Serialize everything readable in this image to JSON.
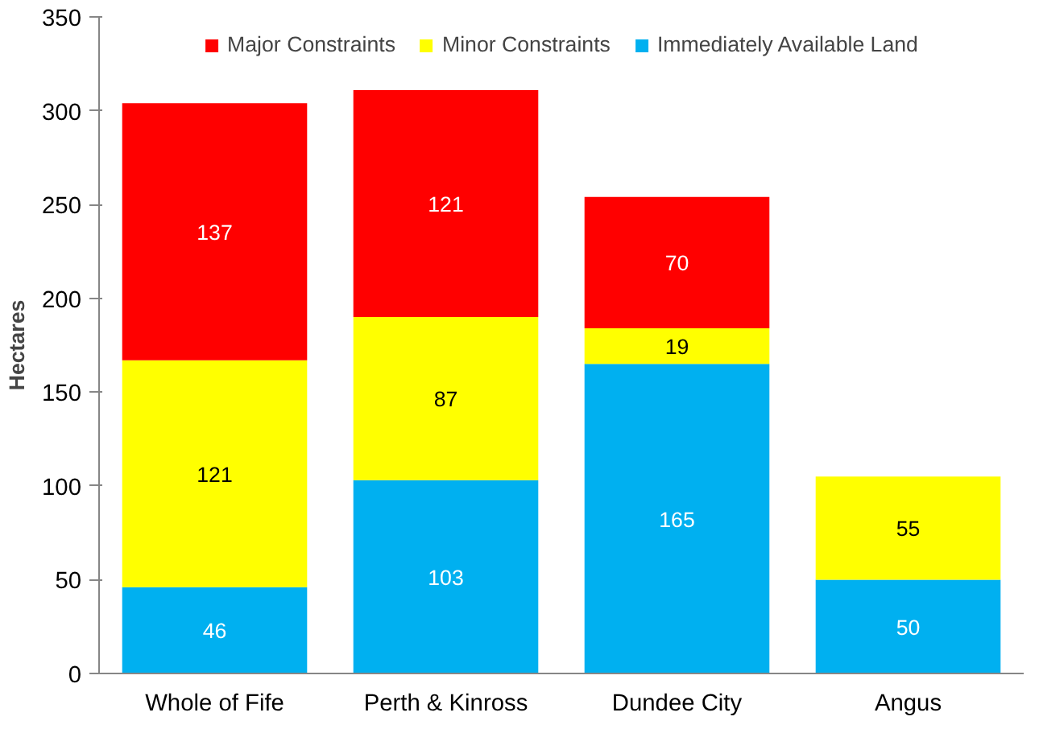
{
  "chart_data": {
    "type": "bar",
    "stacked": true,
    "categories": [
      "Whole of Fife",
      "Perth & Kinross",
      "Dundee City",
      "Angus"
    ],
    "series": [
      {
        "name": "Immediately Available Land",
        "color": "#00b0f0",
        "values": [
          46,
          103,
          165,
          50
        ]
      },
      {
        "name": "Minor Constraints",
        "color": "#ffff00",
        "values": [
          121,
          87,
          19,
          55
        ]
      },
      {
        "name": "Major Constraints",
        "color": "#ff0000",
        "values": [
          137,
          121,
          70,
          null
        ]
      }
    ],
    "ylabel": "Hectares",
    "ylim": [
      0,
      350
    ],
    "yticks": [
      0,
      50,
      100,
      150,
      200,
      250,
      300,
      350
    ],
    "data_labels": true,
    "legend": "top",
    "grid": false
  }
}
